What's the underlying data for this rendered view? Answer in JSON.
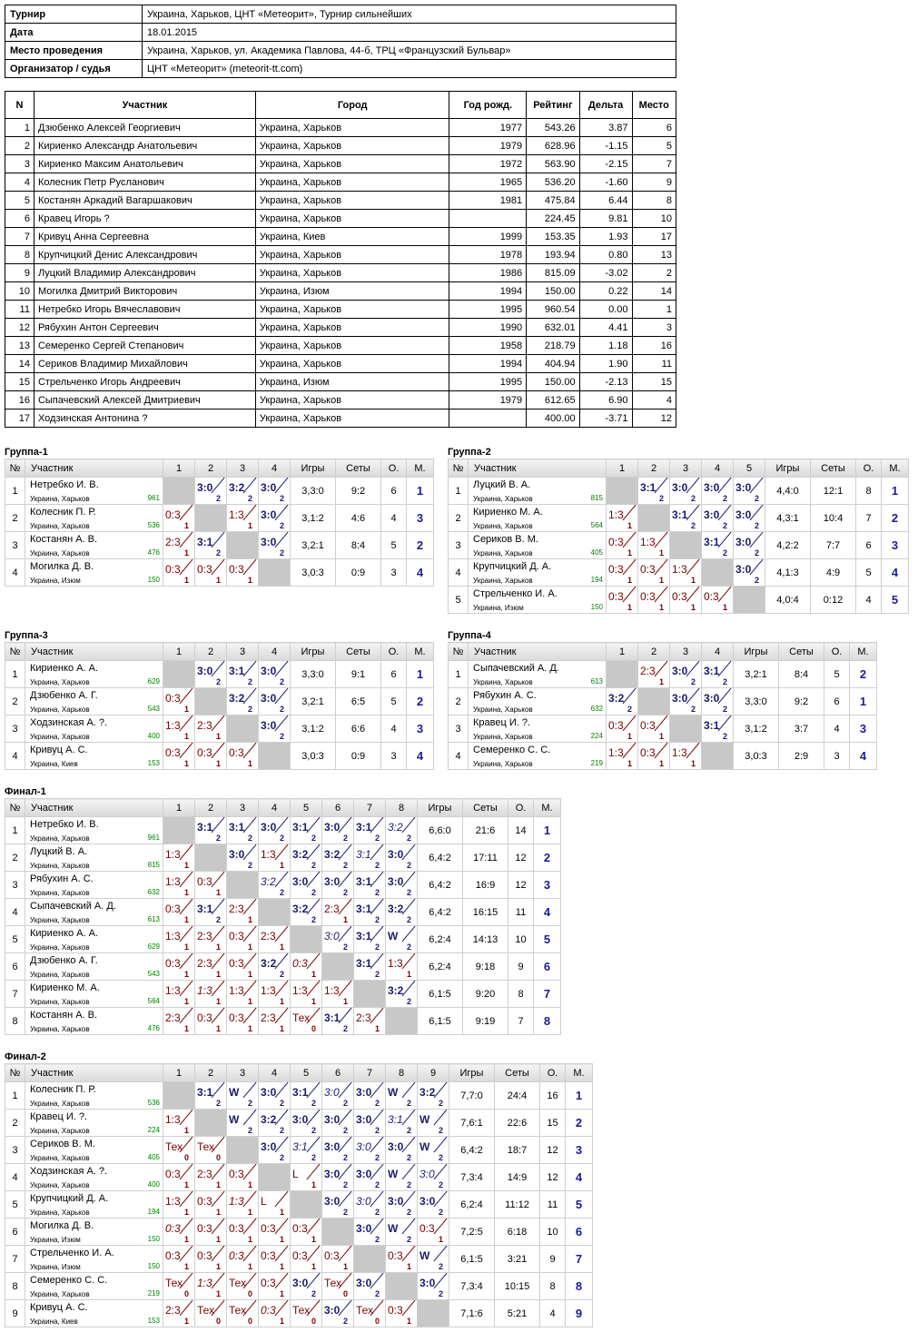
{
  "info": {
    "rows": [
      {
        "label": "Турнир",
        "value": "Украина, Харьков, ЦНТ «Метеорит», Турнир сильнейших"
      },
      {
        "label": "Дата",
        "value": "18.01.2015"
      },
      {
        "label": "Место проведения",
        "value": "Украина, Харьков, ул. Академика Павлова, 44-б, ТРЦ «Французский Бульвар»"
      },
      {
        "label": "Организатор / судья",
        "value": "ЦНТ «Метеорит» (meteorit-tt.com)"
      }
    ]
  },
  "participants": {
    "headers": [
      "N",
      "Участник",
      "Город",
      "Год рожд.",
      "Рейтинг",
      "Дельта",
      "Место"
    ],
    "rows": [
      [
        "1",
        "Дзюбенко Алексей Георгиевич",
        "Украина, Харьков",
        "1977",
        "543.26",
        "3.87",
        "6"
      ],
      [
        "2",
        "Кириенко Александр Анатольевич",
        "Украина, Харьков",
        "1979",
        "628.96",
        "-1.15",
        "5"
      ],
      [
        "3",
        "Кириенко Максим Анатольевич",
        "Украина, Харьков",
        "1972",
        "563.90",
        "-2.15",
        "7"
      ],
      [
        "4",
        "Колесник Петр Русланович",
        "Украина, Харьков",
        "1965",
        "536.20",
        "-1.60",
        "9"
      ],
      [
        "5",
        "Костанян Аркадий Вагаршакович",
        "Украина, Харьков",
        "1981",
        "475.84",
        "6.44",
        "8"
      ],
      [
        "6",
        "Кравец Игорь ?",
        "Украина, Харьков",
        "",
        "224.45",
        "9.81",
        "10"
      ],
      [
        "7",
        "Кривуц Анна Сергеевна",
        "Украина, Киев",
        "1999",
        "153.35",
        "1.93",
        "17"
      ],
      [
        "8",
        "Крупчицкий Денис Александрович",
        "Украина, Харьков",
        "1978",
        "193.94",
        "0.80",
        "13"
      ],
      [
        "9",
        "Луцкий Владимир Александрович",
        "Украина, Харьков",
        "1986",
        "815.09",
        "-3.02",
        "2"
      ],
      [
        "10",
        "Могилка Дмитрий Викторович",
        "Украина, Изюм",
        "1994",
        "150.00",
        "0.22",
        "14"
      ],
      [
        "11",
        "Нетребко Игорь Вячеславович",
        "Украина, Харьков",
        "1995",
        "960.54",
        "0.00",
        "1"
      ],
      [
        "12",
        "Рябухин Антон Сергеевич",
        "Украина, Харьков",
        "1990",
        "632.01",
        "4.41",
        "3"
      ],
      [
        "13",
        "Семеренко Сергей Степанович",
        "Украина, Харьков",
        "1958",
        "218.79",
        "1.18",
        "16"
      ],
      [
        "14",
        "Сериков Владимир Михайлович",
        "Украина, Харьков",
        "1994",
        "404.94",
        "1.90",
        "11"
      ],
      [
        "15",
        "Стрельченко Игорь Андреевич",
        "Украина, Изюм",
        "1995",
        "150.00",
        "-2.13",
        "15"
      ],
      [
        "16",
        "Сыпачевский Алексей Дмитриевич",
        "Украина, Харьков",
        "1979",
        "612.65",
        "6.90",
        "4"
      ],
      [
        "17",
        "Ходзинская Антонина ?",
        "Украина, Харьков",
        "",
        "400.00",
        "-3.71",
        "12"
      ]
    ]
  },
  "group_headers": {
    "num": "№",
    "player": "Участник",
    "games": "Игры",
    "sets": "Сеты",
    "points": "О.",
    "place": "М."
  },
  "groups": [
    {
      "title": "Группа-1",
      "rows": [
        {
          "n": "1",
          "name": "Нетребко И. В.",
          "city": "Украина, Харьков",
          "rating": "961",
          "results": [
            "X",
            "W3:0",
            "W3:2",
            "W3:0"
          ],
          "games": "3,3:0",
          "sets": "9:2",
          "points": "6",
          "place": "1"
        },
        {
          "n": "2",
          "name": "Колесник П. Р.",
          "city": "Украина, Харьков",
          "rating": "536",
          "results": [
            "L0:3",
            "X",
            "L1:3",
            "W3:0"
          ],
          "games": "3,1:2",
          "sets": "4:6",
          "points": "4",
          "place": "3"
        },
        {
          "n": "3",
          "name": "Костанян А. В.",
          "city": "Украина, Харьков",
          "rating": "476",
          "results": [
            "L2:3",
            "W3:1",
            "X",
            "W3:0"
          ],
          "games": "3,2:1",
          "sets": "8:4",
          "points": "5",
          "place": "2"
        },
        {
          "n": "4",
          "name": "Могилка Д. В.",
          "city": "Украина, Изюм",
          "rating": "150",
          "results": [
            "L0:3",
            "L0:3",
            "L0:3",
            "X"
          ],
          "games": "3,0:3",
          "sets": "0:9",
          "points": "3",
          "place": "4"
        }
      ]
    },
    {
      "title": "Группа-2",
      "rows": [
        {
          "n": "1",
          "name": "Луцкий В. А.",
          "city": "Украина, Харьков",
          "rating": "815",
          "results": [
            "X",
            "W3:1",
            "W3:0",
            "W3:0",
            "W3:0"
          ],
          "games": "4,4:0",
          "sets": "12:1",
          "points": "8",
          "place": "1"
        },
        {
          "n": "2",
          "name": "Кириенко М. А.",
          "city": "Украина, Харьков",
          "rating": "564",
          "results": [
            "L1:3",
            "X",
            "W3:1",
            "W3:0",
            "W3:0"
          ],
          "games": "4,3:1",
          "sets": "10:4",
          "points": "7",
          "place": "2"
        },
        {
          "n": "3",
          "name": "Сериков В. М.",
          "city": "Украина, Харьков",
          "rating": "405",
          "results": [
            "L0:3",
            "L1:3",
            "X",
            "W3:1",
            "W3:0"
          ],
          "games": "4,2:2",
          "sets": "7:7",
          "points": "6",
          "place": "3"
        },
        {
          "n": "4",
          "name": "Крупчицкий Д. А.",
          "city": "Украина, Харьков",
          "rating": "194",
          "results": [
            "L0:3",
            "L0:3",
            "L1:3",
            "X",
            "W3:0"
          ],
          "games": "4,1:3",
          "sets": "4:9",
          "points": "5",
          "place": "4"
        },
        {
          "n": "5",
          "name": "Стрельченко И. А.",
          "city": "Украина, Изюм",
          "rating": "150",
          "results": [
            "L0:3",
            "L0:3",
            "L0:3",
            "L0:3",
            "X"
          ],
          "games": "4,0:4",
          "sets": "0:12",
          "points": "4",
          "place": "5"
        }
      ]
    },
    {
      "title": "Группа-3",
      "rows": [
        {
          "n": "1",
          "name": "Кириенко А. А.",
          "city": "Украина, Харьков",
          "rating": "629",
          "results": [
            "X",
            "W3:0",
            "W3:1",
            "W3:0"
          ],
          "games": "3,3:0",
          "sets": "9:1",
          "points": "6",
          "place": "1"
        },
        {
          "n": "2",
          "name": "Дзюбенко А. Г.",
          "city": "Украина, Харьков",
          "rating": "543",
          "results": [
            "L0:3",
            "X",
            "W3:2",
            "W3:0"
          ],
          "games": "3,2:1",
          "sets": "6:5",
          "points": "5",
          "place": "2"
        },
        {
          "n": "3",
          "name": "Ходзинская А. ?.",
          "city": "Украина, Харьков",
          "rating": "400",
          "results": [
            "L1:3",
            "L2:3",
            "X",
            "W3:0"
          ],
          "games": "3,1:2",
          "sets": "6:6",
          "points": "4",
          "place": "3"
        },
        {
          "n": "4",
          "name": "Кривуц А. С.",
          "city": "Украина, Киев",
          "rating": "153",
          "results": [
            "L0:3",
            "L0:3",
            "L0:3",
            "X"
          ],
          "games": "3,0:3",
          "sets": "0:9",
          "points": "3",
          "place": "4"
        }
      ]
    },
    {
      "title": "Группа-4",
      "rows": [
        {
          "n": "1",
          "name": "Сыпачевский А. Д.",
          "city": "Украина, Харьков",
          "rating": "613",
          "results": [
            "X",
            "L2:3",
            "W3:0",
            "W3:1"
          ],
          "games": "3,2:1",
          "sets": "8:4",
          "points": "5",
          "place": "2"
        },
        {
          "n": "2",
          "name": "Рябухин А. С.",
          "city": "Украина, Харьков",
          "rating": "632",
          "results": [
            "W3:2",
            "X",
            "W3:0",
            "W3:0"
          ],
          "games": "3,3:0",
          "sets": "9:2",
          "points": "6",
          "place": "1"
        },
        {
          "n": "3",
          "name": "Кравец И. ?.",
          "city": "Украина, Харьков",
          "rating": "224",
          "results": [
            "L0:3",
            "L0:3",
            "X",
            "W3:1"
          ],
          "games": "3,1:2",
          "sets": "3:7",
          "points": "4",
          "place": "3"
        },
        {
          "n": "4",
          "name": "Семеренко С. С.",
          "city": "Украина, Харьков",
          "rating": "219",
          "results": [
            "L1:3",
            "L0:3",
            "L1:3",
            "X"
          ],
          "games": "3,0:3",
          "sets": "2:9",
          "points": "3",
          "place": "4"
        }
      ]
    },
    {
      "title": "Финал-1",
      "rows": [
        {
          "n": "1",
          "name": "Нетребко И. В.",
          "city": "Украина, Харьков",
          "rating": "961",
          "results": [
            "X",
            "W3:1",
            "W3:1",
            "W3:0",
            "W3:1",
            "W3:0",
            "W3:1",
            "Wi3:2"
          ],
          "games": "6,6:0",
          "sets": "21:6",
          "points": "14",
          "place": "1"
        },
        {
          "n": "2",
          "name": "Луцкий В. А.",
          "city": "Украина, Харьков",
          "rating": "815",
          "results": [
            "L1:3",
            "X",
            "W3:0",
            "L1:3",
            "W3:2",
            "W3:2",
            "Wi3:1",
            "W3:0"
          ],
          "games": "6,4:2",
          "sets": "17:11",
          "points": "12",
          "place": "2"
        },
        {
          "n": "3",
          "name": "Рябухин А. С.",
          "city": "Украина, Харьков",
          "rating": "632",
          "results": [
            "L1:3",
            "L0:3",
            "X",
            "Wi3:2",
            "W3:0",
            "W3:0",
            "W3:1",
            "W3:0"
          ],
          "games": "6,4:2",
          "sets": "16:9",
          "points": "12",
          "place": "3"
        },
        {
          "n": "4",
          "name": "Сыпачевский А. Д.",
          "city": "Украина, Харьков",
          "rating": "613",
          "results": [
            "L0:3",
            "W3:1",
            "L2:3",
            "X",
            "W3:2",
            "L2:3",
            "W3:1",
            "W3:2"
          ],
          "games": "6,4:2",
          "sets": "16:15",
          "points": "11",
          "place": "4"
        },
        {
          "n": "5",
          "name": "Кириенко А. А.",
          "city": "Украина, Харьков",
          "rating": "629",
          "results": [
            "L1:3",
            "L2:3",
            "L0:3",
            "L2:3",
            "X",
            "Wi3:0",
            "W3:1",
            "WW"
          ],
          "games": "6,2:4",
          "sets": "14:13",
          "points": "10",
          "place": "5"
        },
        {
          "n": "6",
          "name": "Дзюбенко А. Г.",
          "city": "Украина, Харьков",
          "rating": "543",
          "results": [
            "L0:3",
            "L2:3",
            "L0:3",
            "W3:2",
            "Li0:3",
            "X",
            "W3:1",
            "L1:3"
          ],
          "games": "6,2:4",
          "sets": "9:18",
          "points": "9",
          "place": "6"
        },
        {
          "n": "7",
          "name": "Кириенко М. А.",
          "city": "Украина, Харьков",
          "rating": "564",
          "results": [
            "L1:3",
            "Li1:3",
            "L1:3",
            "L1:3",
            "L1:3",
            "L1:3",
            "X",
            "W3:2"
          ],
          "games": "6,1:5",
          "sets": "9:20",
          "points": "8",
          "place": "7"
        },
        {
          "n": "8",
          "name": "Костанян А. В.",
          "city": "Украина, Харьков",
          "rating": "476",
          "results": [
            "L2:3",
            "L0:3",
            "L0:3",
            "L2:3",
            "LТех",
            "W3:1",
            "L2:3",
            "X"
          ],
          "games": "6,1:5",
          "sets": "9:19",
          "points": "7",
          "place": "8"
        }
      ]
    },
    {
      "title": "Финал-2",
      "rows": [
        {
          "n": "1",
          "name": "Колесник П. Р.",
          "city": "Украина, Харьков",
          "rating": "536",
          "results": [
            "X",
            "W3:1",
            "WW",
            "W3:0",
            "W3:1",
            "Wi3:0",
            "W3:0",
            "WW",
            "W3:2"
          ],
          "games": "7,7:0",
          "sets": "24:4",
          "points": "16",
          "place": "1"
        },
        {
          "n": "2",
          "name": "Кравец И. ?.",
          "city": "Украина, Харьков",
          "rating": "224",
          "results": [
            "L1:3",
            "X",
            "WW",
            "W3:2",
            "W3:0",
            "W3:0",
            "W3:0",
            "Wi3:1",
            "WW"
          ],
          "games": "7,6:1",
          "sets": "22:6",
          "points": "15",
          "place": "2"
        },
        {
          "n": "3",
          "name": "Сериков В. М.",
          "city": "Украина, Харьков",
          "rating": "405",
          "results": [
            "LТех",
            "LТех",
            "X",
            "W3:0",
            "Wi3:1",
            "W3:0",
            "Wi3:0",
            "W3:0",
            "WW"
          ],
          "games": "6,4:2",
          "sets": "18:7",
          "points": "12",
          "place": "3"
        },
        {
          "n": "4",
          "name": "Ходзинская А. ?.",
          "city": "Украина, Харьков",
          "rating": "400",
          "results": [
            "L0:3",
            "L2:3",
            "L0:3",
            "X",
            "LL",
            "W3:0",
            "W3:0",
            "WW",
            "Wi3:0"
          ],
          "games": "7,3:4",
          "sets": "14:9",
          "points": "12",
          "place": "4"
        },
        {
          "n": "5",
          "name": "Крупчицкий Д. А.",
          "city": "Украина, Харьков",
          "rating": "194",
          "results": [
            "L1:3",
            "L0:3",
            "Li1:3",
            "LL",
            "X",
            "W3:0",
            "Wi3:0",
            "W3:0",
            "W3:0"
          ],
          "games": "6,2:4",
          "sets": "11:12",
          "points": "11",
          "place": "5"
        },
        {
          "n": "6",
          "name": "Могилка Д. В.",
          "city": "Украина, Изюм",
          "rating": "150",
          "results": [
            "Li0:3",
            "L0:3",
            "L0:3",
            "L0:3",
            "L0:3",
            "X",
            "W3:0",
            "WW",
            "L0:3"
          ],
          "games": "7,2:5",
          "sets": "6:18",
          "points": "10",
          "place": "6"
        },
        {
          "n": "7",
          "name": "Стрельченко И. А.",
          "city": "Украина, Изюм",
          "rating": "150",
          "results": [
            "L0:3",
            "L0:3",
            "Li0:3",
            "L0:3",
            "L0:3",
            "L0:3",
            "X",
            "L0:3",
            "WW"
          ],
          "games": "6,1:5",
          "sets": "3:21",
          "points": "9",
          "place": "7"
        },
        {
          "n": "8",
          "name": "Семеренко С. С.",
          "city": "Украина, Харьков",
          "rating": "219",
          "results": [
            "LТех",
            "Li1:3",
            "LТех",
            "L0:3",
            "W3:0",
            "LТех",
            "W3:0",
            "X",
            "W3:0"
          ],
          "games": "7,3:4",
          "sets": "10:15",
          "points": "8",
          "place": "8"
        },
        {
          "n": "9",
          "name": "Кривуц А. С.",
          "city": "Украина, Киев",
          "rating": "153",
          "results": [
            "L2:3",
            "LТех",
            "LТех",
            "Li0:3",
            "LТех",
            "W3:0",
            "LТех",
            "L0:3",
            "X"
          ],
          "games": "7,1:6",
          "sets": "5:21",
          "points": "4",
          "place": "9"
        }
      ]
    }
  ]
}
